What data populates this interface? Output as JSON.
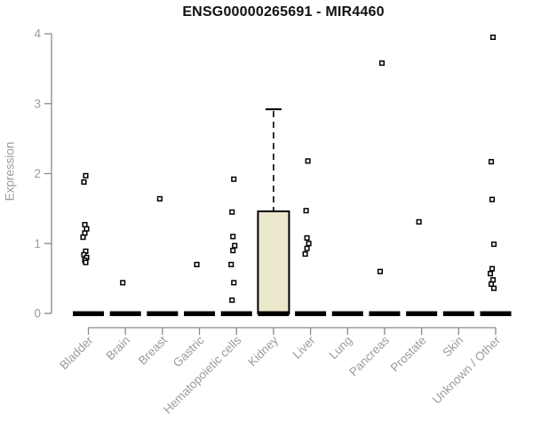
{
  "chart_data": {
    "type": "boxplot",
    "title": "ENSG00000265691 - MIR4460",
    "ylabel": "Expression",
    "xlabel": "",
    "ylim": [
      0,
      4
    ],
    "yticks": [
      0,
      1,
      2,
      3,
      4
    ],
    "grid": false,
    "legend": false,
    "colors": {
      "box_fill": "#ece8cd",
      "axis": "#8a8a8a",
      "tick_label": "#9b9b9b",
      "data": "#000000",
      "background": "#ffffff"
    },
    "categories": [
      {
        "label": "Bladder",
        "median": 0,
        "points": [
          1.97,
          1.88,
          1.27,
          1.21,
          1.15,
          1.09,
          0.89,
          0.84,
          0.8,
          0.76,
          0.73
        ]
      },
      {
        "label": "Brain",
        "median": 0,
        "points": [
          0.44
        ]
      },
      {
        "label": "Breast",
        "median": 0,
        "points": [
          1.64
        ]
      },
      {
        "label": "Gastric",
        "median": 0,
        "points": [
          0.7
        ]
      },
      {
        "label": "Hematopoietic cells",
        "median": 0,
        "points": [
          1.92,
          1.45,
          1.1,
          0.97,
          0.9,
          0.7,
          0.44,
          0.19
        ]
      },
      {
        "label": "Kidney",
        "median": 0,
        "points": [],
        "box": {
          "q1": 0,
          "q3": 1.46,
          "whisker_high": 2.92
        }
      },
      {
        "label": "Liver",
        "median": 0,
        "points": [
          2.18,
          1.47,
          1.08,
          1.0,
          0.93,
          0.85
        ]
      },
      {
        "label": "Lung",
        "median": 0,
        "points": []
      },
      {
        "label": "Pancreas",
        "median": 0,
        "points": [
          3.58,
          0.6
        ]
      },
      {
        "label": "Prostate",
        "median": 0,
        "points": [
          1.31
        ]
      },
      {
        "label": "Skin",
        "median": 0,
        "points": []
      },
      {
        "label": "Unknown / Other",
        "median": 0,
        "points": [
          3.95,
          2.17,
          1.63,
          0.99,
          0.64,
          0.57,
          0.48,
          0.42,
          0.36
        ]
      }
    ]
  }
}
